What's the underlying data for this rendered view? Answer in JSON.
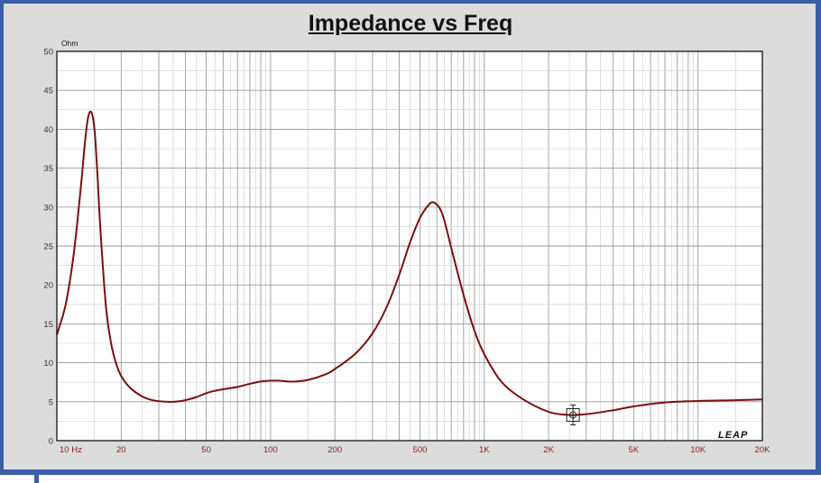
{
  "chart_data": {
    "type": "line",
    "title": "Impedance vs Freq",
    "xlabel": "",
    "ylabel": "Ohm",
    "x_scale": "log",
    "xlim": [
      10,
      20000
    ],
    "ylim": [
      0,
      50
    ],
    "grid": true,
    "x_tick_labels": [
      "10 Hz",
      "20",
      "50",
      "100",
      "200",
      "500",
      "1K",
      "2K",
      "5K",
      "10K",
      "20K"
    ],
    "x_tick_values": [
      10,
      20,
      50,
      100,
      200,
      500,
      1000,
      2000,
      5000,
      10000,
      20000
    ],
    "y_ticks": [
      0,
      5,
      10,
      15,
      20,
      25,
      30,
      35,
      40,
      45,
      50
    ],
    "line_color": "#7a1010",
    "series": [
      {
        "x": [
          10,
          11,
          12,
          13,
          13.5,
          14,
          14.5,
          15,
          15.5,
          16,
          17,
          18,
          19,
          20,
          22,
          25,
          28,
          32,
          36,
          40,
          45,
          50,
          55,
          60,
          70,
          80,
          90,
          100,
          110,
          120,
          130,
          150,
          180,
          200,
          250,
          300,
          350,
          400,
          450,
          500,
          550,
          580,
          620,
          650,
          700,
          800,
          900,
          1000,
          1200,
          1500,
          2000,
          2500,
          3000,
          4000,
          5000,
          7000,
          10000,
          15000,
          20000
        ],
        "y": [
          13.6,
          17.5,
          24,
          33,
          38,
          41.5,
          42.2,
          40,
          34,
          27,
          17,
          12.3,
          9.8,
          8.3,
          6.8,
          5.7,
          5.2,
          5.0,
          5.0,
          5.2,
          5.6,
          6.1,
          6.4,
          6.6,
          6.9,
          7.3,
          7.6,
          7.7,
          7.7,
          7.6,
          7.6,
          7.8,
          8.5,
          9.2,
          11.2,
          13.8,
          17.2,
          21.3,
          25.5,
          28.6,
          30.3,
          30.6,
          29.8,
          28.3,
          24.8,
          18.7,
          14.1,
          11.1,
          7.6,
          5.4,
          3.7,
          3.3,
          3.4,
          3.9,
          4.4,
          4.9,
          5.1,
          5.2,
          5.3
        ]
      }
    ],
    "cursor_marker": {
      "x": 2600,
      "y": 3.3
    }
  },
  "logo_text": "LEAP"
}
